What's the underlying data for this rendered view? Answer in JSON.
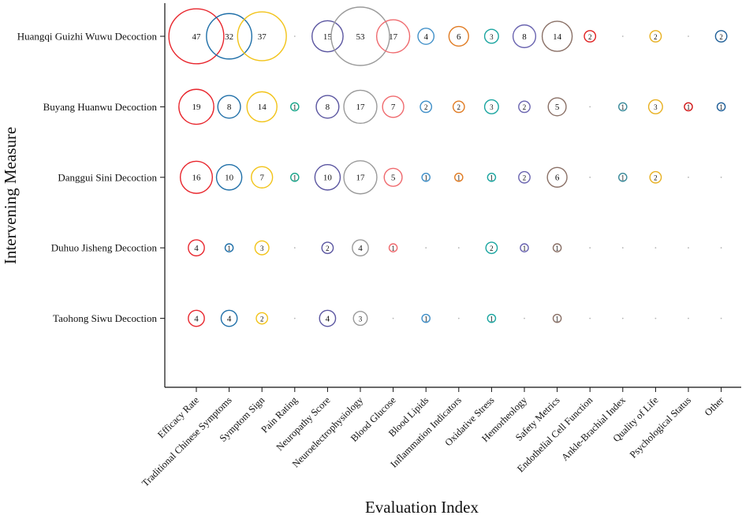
{
  "chart_data": {
    "type": "scatter",
    "subtype": "bubble",
    "title": "",
    "xlabel": "Evaluation Index",
    "ylabel": "Intervening Measure",
    "grid": false,
    "legend": "none",
    "x_categories": [
      "Efficacy Rate",
      "Traditional Chinese Symptoms",
      "Symptom Sign",
      "Pain Rating",
      "Neuropathy Score",
      "Neuroelectrophysiology",
      "Blood Glucose",
      "Blood Lipids",
      "Inflammation Indicators",
      "Oxidative Stress",
      "Hemorheology",
      "Safety Metrics",
      "Endothelial Cell Function",
      "Ankle-Brachial Index",
      "Quality of Life",
      "Psychological Status",
      "Other"
    ],
    "y_categories": [
      "Huangqi Guizhi Wuwu Decoction",
      "Buyang Huanwu Decoction",
      "Danggui Sini Decoction",
      "Duhuo Jisheng Decoction",
      "Taohong Siwu Decoction"
    ],
    "column_colors": [
      "#e8262d",
      "#1f6fa8",
      "#f2c318",
      "#1aa58a",
      "#5a55a0",
      "#9a9a9a",
      "#ef6a6e",
      "#3f8fc8",
      "#e07b22",
      "#1aa5a0",
      "#6a64b0",
      "#8a7066",
      "#e02020",
      "#3a8a9a",
      "#e8b020",
      "#d01818",
      "#1f5f98"
    ],
    "series": [
      {
        "name": "Huangqi Guizhi Wuwu Decoction",
        "values": [
          47,
          32,
          37,
          0,
          15,
          53,
          17,
          4,
          6,
          3,
          8,
          14,
          2,
          0,
          2,
          0,
          2
        ]
      },
      {
        "name": "Buyang Huanwu Decoction",
        "values": [
          19,
          8,
          14,
          1,
          8,
          17,
          7,
          2,
          2,
          3,
          2,
          5,
          0,
          1,
          3,
          1,
          1
        ]
      },
      {
        "name": "Danggui Sini Decoction",
        "values": [
          16,
          10,
          7,
          1,
          10,
          17,
          5,
          1,
          1,
          1,
          2,
          6,
          0,
          1,
          2,
          0,
          0
        ]
      },
      {
        "name": "Duhuo Jisheng Decoction",
        "values": [
          4,
          1,
          3,
          0,
          2,
          4,
          1,
          0,
          0,
          2,
          1,
          1,
          0,
          0,
          0,
          0,
          0
        ]
      },
      {
        "name": "Taohong Siwu Decoction",
        "values": [
          4,
          4,
          2,
          0,
          4,
          3,
          0,
          1,
          0,
          1,
          0,
          1,
          0,
          0,
          0,
          0,
          0
        ]
      }
    ]
  }
}
